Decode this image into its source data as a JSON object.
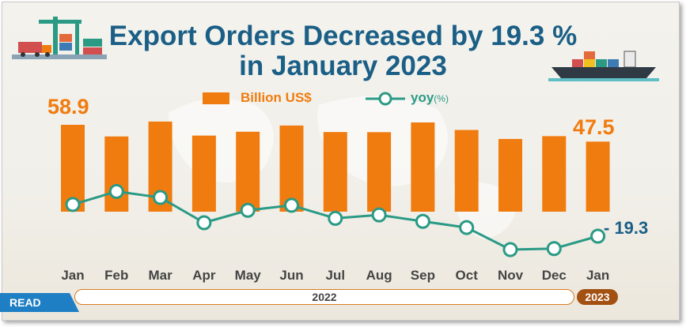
{
  "header": {
    "title_line1": "Export Orders Decreased by 19.3 %",
    "title_line2": "in January 2023",
    "read_tag": "READ"
  },
  "legend": {
    "bars_label": "Billion US$",
    "line_label": "yoy",
    "line_unit": "(%)"
  },
  "callouts": {
    "first_value": "58.9",
    "last_value": "47.5",
    "last_yoy": "- 19.3"
  },
  "years": {
    "main": "2022",
    "badge": "2023"
  },
  "colors": {
    "bar": "#f07c0f",
    "line": "#2a9a85",
    "title": "#1b5f86"
  },
  "icons": [
    "port-crane-truck-icon",
    "cargo-ship-icon"
  ],
  "chart_data": {
    "type": "bar",
    "categories": [
      "Jan",
      "Feb",
      "Mar",
      "Apr",
      "May",
      "Jun",
      "Jul",
      "Aug",
      "Sep",
      "Oct",
      "Nov",
      "Dec",
      "Jan"
    ],
    "series": [
      {
        "name": "Billion US$",
        "type": "bar",
        "values": [
          58.9,
          51.0,
          61.1,
          51.6,
          54.2,
          58.4,
          54.0,
          53.9,
          60.5,
          55.4,
          49.3,
          51.2,
          47.5
        ]
      },
      {
        "name": "yoy(%)",
        "type": "line",
        "values": [
          -3.5,
          3.0,
          0.0,
          -12.6,
          -6.4,
          -3.9,
          -10.4,
          -8.7,
          -11.9,
          -15.0,
          -26.0,
          -25.5,
          -19.3
        ]
      }
    ],
    "ylim": [
      0,
      62
    ],
    "y2lim": [
      -30,
      6
    ],
    "legend": "top-center",
    "grid": false
  }
}
